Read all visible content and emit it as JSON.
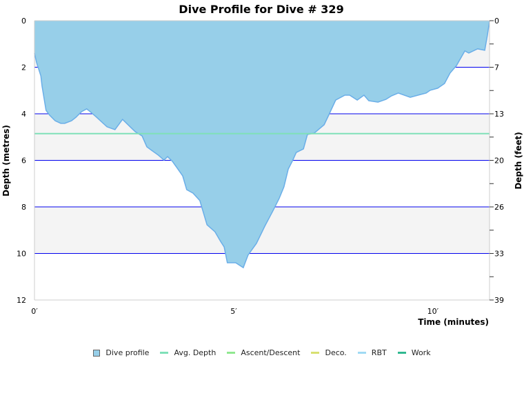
{
  "chart_data": {
    "type": "area",
    "title": "Dive Profile for Dive # 329",
    "xlabel": "Time (minutes)",
    "ylabel": "Depth (metres)",
    "y2label": "Depth (feet)",
    "xlim": [
      0,
      11.42
    ],
    "ylim": [
      0,
      12
    ],
    "y_inverted": true,
    "grid": true,
    "x_ticks": [
      {
        "v": 0,
        "label": "0′"
      },
      {
        "v": 5,
        "label": "5′"
      },
      {
        "v": 10,
        "label": "10′"
      }
    ],
    "y_ticks": [
      0,
      2,
      4,
      6,
      8,
      10,
      12
    ],
    "y2_ticks": [
      {
        "m": 0,
        "label": "0"
      },
      {
        "m": 2,
        "label": "7"
      },
      {
        "m": 4,
        "label": "13"
      },
      {
        "m": 6,
        "label": "20"
      },
      {
        "m": 8,
        "label": "26"
      },
      {
        "m": 10,
        "label": "33"
      },
      {
        "m": 12,
        "label": "39"
      }
    ],
    "avg_depth": 4.85,
    "colors": {
      "profile_fill": "#97cfe9",
      "profile_line": "#6aaee8",
      "avg_depth": "#7fe0b8",
      "grid": "#0000ee",
      "band": "#f4f4f4"
    },
    "series": [
      {
        "name": "Dive profile",
        "time": [
          0,
          0.05,
          0.16,
          0.19,
          0.29,
          0.38,
          0.52,
          0.66,
          0.76,
          0.93,
          1.04,
          1.18,
          1.31,
          1.42,
          1.56,
          1.82,
          2.02,
          2.21,
          2.42,
          2.53,
          2.7,
          2.82,
          2.94,
          3.11,
          3.25,
          3.34,
          3.46,
          3.56,
          3.72,
          3.82,
          3.98,
          4.15,
          4.33,
          4.53,
          4.67,
          4.76,
          4.84,
          5.05,
          5.24,
          5.36,
          5.57,
          5.78,
          5.99,
          6.14,
          6.26,
          6.37,
          6.47,
          6.57,
          6.75,
          6.85,
          7.02,
          7.27,
          7.4,
          7.56,
          7.79,
          7.91,
          8.1,
          8.27,
          8.39,
          8.62,
          8.82,
          8.96,
          9.13,
          9.43,
          9.69,
          9.83,
          9.93,
          10.12,
          10.29,
          10.43,
          10.59,
          10.8,
          10.9,
          11.12,
          11.3,
          11.37,
          11.42
        ],
        "depth": [
          1.39,
          1.78,
          2.37,
          2.81,
          3.85,
          4.06,
          4.3,
          4.41,
          4.41,
          4.3,
          4.15,
          3.91,
          3.79,
          3.94,
          4.15,
          4.56,
          4.68,
          4.24,
          4.59,
          4.77,
          4.95,
          5.42,
          5.57,
          5.78,
          5.99,
          5.84,
          6.04,
          6.28,
          6.67,
          7.26,
          7.41,
          7.73,
          8.77,
          9.07,
          9.48,
          9.72,
          10.4,
          10.4,
          10.61,
          10.07,
          9.57,
          8.83,
          8.15,
          7.64,
          7.14,
          6.37,
          6.04,
          5.66,
          5.51,
          4.89,
          4.83,
          4.47,
          4.0,
          3.41,
          3.2,
          3.2,
          3.41,
          3.2,
          3.44,
          3.5,
          3.38,
          3.23,
          3.11,
          3.29,
          3.17,
          3.11,
          2.99,
          2.9,
          2.7,
          2.25,
          1.93,
          1.3,
          1.39,
          1.21,
          1.27,
          0.59,
          0
        ]
      }
    ],
    "legend": {
      "placement": "bottom",
      "items": [
        {
          "label": "Dive profile",
          "color": "#97cfe9",
          "kind": "square"
        },
        {
          "label": "Avg. Depth",
          "color": "#7fe0b8",
          "kind": "line"
        },
        {
          "label": "Ascent/Descent",
          "color": "#90e890",
          "kind": "line"
        },
        {
          "label": "Deco.",
          "color": "#d8e070",
          "kind": "line"
        },
        {
          "label": "RBT",
          "color": "#a0daf4",
          "kind": "line"
        },
        {
          "label": "Work",
          "color": "#30b890",
          "kind": "line"
        }
      ]
    }
  }
}
